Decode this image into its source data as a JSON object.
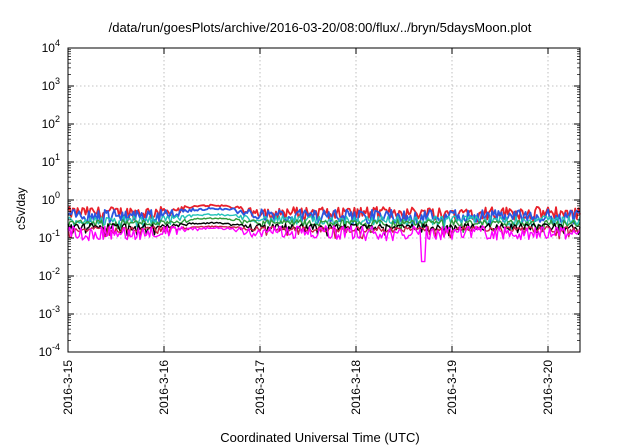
{
  "chart_data": {
    "type": "line",
    "title": "/data/run/goesPlots/archive/2016-03-20/08:00/flux/../bryn/5daysMoon.plot",
    "xlabel": "Coordinated Universal Time (UTC)",
    "ylabel": "cSv/day",
    "yscale": "log",
    "ylim": [
      0.0001,
      10000
    ],
    "xlim": [
      "2016-03-15",
      "2016-03-20 08:00"
    ],
    "y_ticks": [
      {
        "base": "10",
        "exp": "-4"
      },
      {
        "base": "10",
        "exp": "-3"
      },
      {
        "base": "10",
        "exp": "-2"
      },
      {
        "base": "10",
        "exp": "-1"
      },
      {
        "base": "10",
        "exp": "0"
      },
      {
        "base": "10",
        "exp": "1"
      },
      {
        "base": "10",
        "exp": "2"
      },
      {
        "base": "10",
        "exp": "3"
      },
      {
        "base": "10",
        "exp": "4"
      }
    ],
    "x_ticks": [
      "2016-3-15",
      "2016-3-16",
      "2016-3-17",
      "2016-3-18",
      "2016-3-19",
      "2016-3-20"
    ],
    "grid": true,
    "legend": "none",
    "series_summary": [
      {
        "color": "#e8202a",
        "baseline": 0.48,
        "amplitude": 0.18,
        "bump_day": 1.5,
        "bump_value": 0.72
      },
      {
        "color": "#2a56e0",
        "baseline": 0.4,
        "amplitude": 0.16,
        "bump_day": 1.5,
        "bump_value": 0.6
      },
      {
        "color": "#22c3b8",
        "baseline": 0.3,
        "amplitude": 0.08,
        "bump_day": 1.5,
        "bump_value": 0.42
      },
      {
        "color": "#2f9a3a",
        "baseline": 0.25,
        "amplitude": 0.05,
        "bump_day": 1.5,
        "bump_value": 0.33
      },
      {
        "color": "#000000",
        "baseline": 0.2,
        "amplitude": 0.04,
        "bump_day": 1.5,
        "bump_value": 0.25
      },
      {
        "color": "#c8204a",
        "baseline": 0.17,
        "amplitude": 0.03,
        "bump_day": 1.5,
        "bump_value": 0.2
      },
      {
        "color": "#ff00ff",
        "baseline": 0.15,
        "amplitude": 0.06,
        "bump_day": 1.5,
        "bump_value": 0.18,
        "dip_day": 3.7,
        "dip_value": 0.024
      }
    ]
  }
}
